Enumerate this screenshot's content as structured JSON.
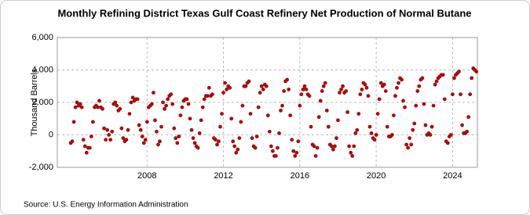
{
  "chart_data": {
    "type": "scatter",
    "title": "Monthly Refining District Texas Gulf Coast Refinery Net Production of Normal Butane",
    "y_label": "Thousand Barrels",
    "source": "Source: U.S. Energy Information Administration",
    "color": "#a50f0f",
    "grid": true,
    "xlim": [
      2003.3,
      2025.3
    ],
    "ylim": [
      -2000,
      6000
    ],
    "xticks": [
      2008,
      2012,
      2016,
      2020,
      2024
    ],
    "yticks": [
      {
        "value": -2000,
        "label": "-2,000"
      },
      0,
      {
        "value": 2000,
        "label": "2,000"
      },
      {
        "value": 4000,
        "label": "4,000"
      },
      {
        "value": 6000,
        "label": "6,000"
      }
    ],
    "x": [
      2004,
      2004.083,
      2004.167,
      2004.25,
      2004.333,
      2004.417,
      2004.5,
      2004.583,
      2004.667,
      2004.75,
      2004.833,
      2004.917,
      2005,
      2005.083,
      2005.167,
      2005.25,
      2005.333,
      2005.417,
      2005.5,
      2005.583,
      2005.667,
      2005.75,
      2005.833,
      2005.917,
      2006,
      2006.083,
      2006.167,
      2006.25,
      2006.333,
      2006.417,
      2006.5,
      2006.583,
      2006.667,
      2006.75,
      2006.833,
      2006.917,
      2007,
      2007.083,
      2007.167,
      2007.25,
      2007.333,
      2007.417,
      2007.5,
      2007.583,
      2007.667,
      2007.75,
      2007.833,
      2007.917,
      2008,
      2008.083,
      2008.167,
      2008.25,
      2008.333,
      2008.417,
      2008.5,
      2008.583,
      2008.667,
      2008.75,
      2008.833,
      2008.917,
      2009,
      2009.083,
      2009.167,
      2009.25,
      2009.333,
      2009.417,
      2009.5,
      2009.583,
      2009.667,
      2009.75,
      2009.833,
      2009.917,
      2010,
      2010.083,
      2010.167,
      2010.25,
      2010.333,
      2010.417,
      2010.5,
      2010.583,
      2010.667,
      2010.75,
      2010.833,
      2010.917,
      2011,
      2011.083,
      2011.167,
      2011.25,
      2011.333,
      2011.417,
      2011.5,
      2011.583,
      2011.667,
      2011.75,
      2011.833,
      2011.917,
      2012,
      2012.083,
      2012.167,
      2012.25,
      2012.333,
      2012.417,
      2012.5,
      2012.583,
      2012.667,
      2012.75,
      2012.833,
      2012.917,
      2013,
      2013.083,
      2013.167,
      2013.25,
      2013.333,
      2013.417,
      2013.5,
      2013.583,
      2013.667,
      2013.75,
      2013.833,
      2013.917,
      2014,
      2014.083,
      2014.167,
      2014.25,
      2014.333,
      2014.417,
      2014.5,
      2014.583,
      2014.667,
      2014.75,
      2014.833,
      2014.917,
      2015,
      2015.083,
      2015.167,
      2015.25,
      2015.333,
      2015.417,
      2015.5,
      2015.583,
      2015.667,
      2015.75,
      2015.833,
      2015.917,
      2016,
      2016.083,
      2016.167,
      2016.25,
      2016.333,
      2016.417,
      2016.5,
      2016.583,
      2016.667,
      2016.75,
      2016.833,
      2016.917,
      2017,
      2017.083,
      2017.167,
      2017.25,
      2017.333,
      2017.417,
      2017.5,
      2017.583,
      2017.667,
      2017.75,
      2017.833,
      2017.917,
      2018,
      2018.083,
      2018.167,
      2018.25,
      2018.333,
      2018.417,
      2018.5,
      2018.583,
      2018.667,
      2018.75,
      2018.833,
      2018.917,
      2019,
      2019.083,
      2019.167,
      2019.25,
      2019.333,
      2019.417,
      2019.5,
      2019.583,
      2019.667,
      2019.75,
      2019.833,
      2019.917,
      2020,
      2020.083,
      2020.167,
      2020.25,
      2020.333,
      2020.417,
      2020.5,
      2020.583,
      2020.667,
      2020.75,
      2020.833,
      2020.917,
      2021,
      2021.083,
      2021.167,
      2021.25,
      2021.333,
      2021.417,
      2021.5,
      2021.583,
      2021.667,
      2021.75,
      2021.833,
      2021.917,
      2022,
      2022.083,
      2022.167,
      2022.25,
      2022.333,
      2022.417,
      2022.5,
      2022.583,
      2022.667,
      2022.75,
      2022.833,
      2022.917,
      2023,
      2023.083,
      2023.167,
      2023.25,
      2023.333,
      2023.417,
      2023.5,
      2023.583,
      2023.667,
      2023.75,
      2023.833,
      2023.917,
      2024,
      2024.083,
      2024.167,
      2024.25,
      2024.333,
      2024.417,
      2024.5,
      2024.583,
      2024.667,
      2024.75,
      2024.833,
      2024.917,
      2025,
      2025.083,
      2025.167,
      2025.25
    ],
    "values": [
      -500,
      -400,
      800,
      1700,
      2000,
      1800,
      1900,
      1700,
      -300,
      -700,
      -1100,
      -800,
      -800,
      -100,
      800,
      1700,
      1800,
      1700,
      2100,
      1700,
      1600,
      400,
      -300,
      300,
      0,
      -300,
      200,
      1900,
      2000,
      1800,
      1500,
      1600,
      400,
      -200,
      -400,
      -300,
      300,
      1300,
      2000,
      2300,
      2100,
      2200,
      2200,
      600,
      300,
      -100,
      -500,
      -300,
      800,
      1700,
      1800,
      1900,
      2600,
      900,
      200,
      -600,
      -400,
      500,
      2000,
      1600,
      1800,
      2200,
      2400,
      2500,
      1900,
      400,
      -200,
      -500,
      -100,
      1200,
      1700,
      2100,
      2200,
      2200,
      1900,
      1000,
      300,
      -200,
      -500,
      -700,
      -800,
      100,
      900,
      1700,
      2200,
      2400,
      2400,
      2900,
      2400,
      2500,
      -200,
      -300,
      -600,
      -400,
      500,
      1300,
      2600,
      3200,
      2800,
      3000,
      2900,
      1000,
      -400,
      -700,
      -1100,
      -900,
      -200,
      800,
      1800,
      3000,
      3000,
      3200,
      3300,
      1300,
      -200,
      -700,
      -800,
      -100,
      1700,
      2600,
      3000,
      2800,
      3100,
      3000,
      1200,
      200,
      -700,
      -1000,
      -1300,
      -1300,
      -800,
      100,
      1500,
      1800,
      2700,
      3300,
      3400,
      2800,
      1200,
      -300,
      -1000,
      -1300,
      -1100,
      -400,
      1800,
      2500,
      2800,
      3000,
      2800,
      2500,
      2400,
      500,
      -600,
      -700,
      -1300,
      -800,
      1100,
      2100,
      2700,
      3000,
      3200,
      1500,
      500,
      -600,
      -700,
      -900,
      -700,
      -200,
      900,
      2600,
      2800,
      3000,
      2600,
      2700,
      1400,
      -700,
      -1100,
      -1300,
      -700,
      100,
      300,
      1300,
      2500,
      2800,
      3200,
      3100,
      2900,
      2400,
      500,
      100,
      -200,
      -300,
      0,
      1300,
      2200,
      3200,
      3000,
      3100,
      2700,
      500,
      -100,
      -100,
      0,
      1200,
      2400,
      2900,
      3200,
      3500,
      3400,
      2100,
      1700,
      -600,
      -800,
      -200,
      -600,
      300,
      700,
      1800,
      2700,
      3000,
      3400,
      3500,
      1900,
      600,
      0,
      100,
      0,
      500,
      1800,
      3100,
      3300,
      3500,
      3600,
      3700,
      3700,
      2200,
      -400,
      -500,
      -100,
      0,
      2500,
      3500,
      3700,
      3800,
      3900,
      2500,
      600,
      100,
      100,
      200,
      1100,
      2500,
      3500,
      4100,
      4000,
      3900
    ]
  }
}
